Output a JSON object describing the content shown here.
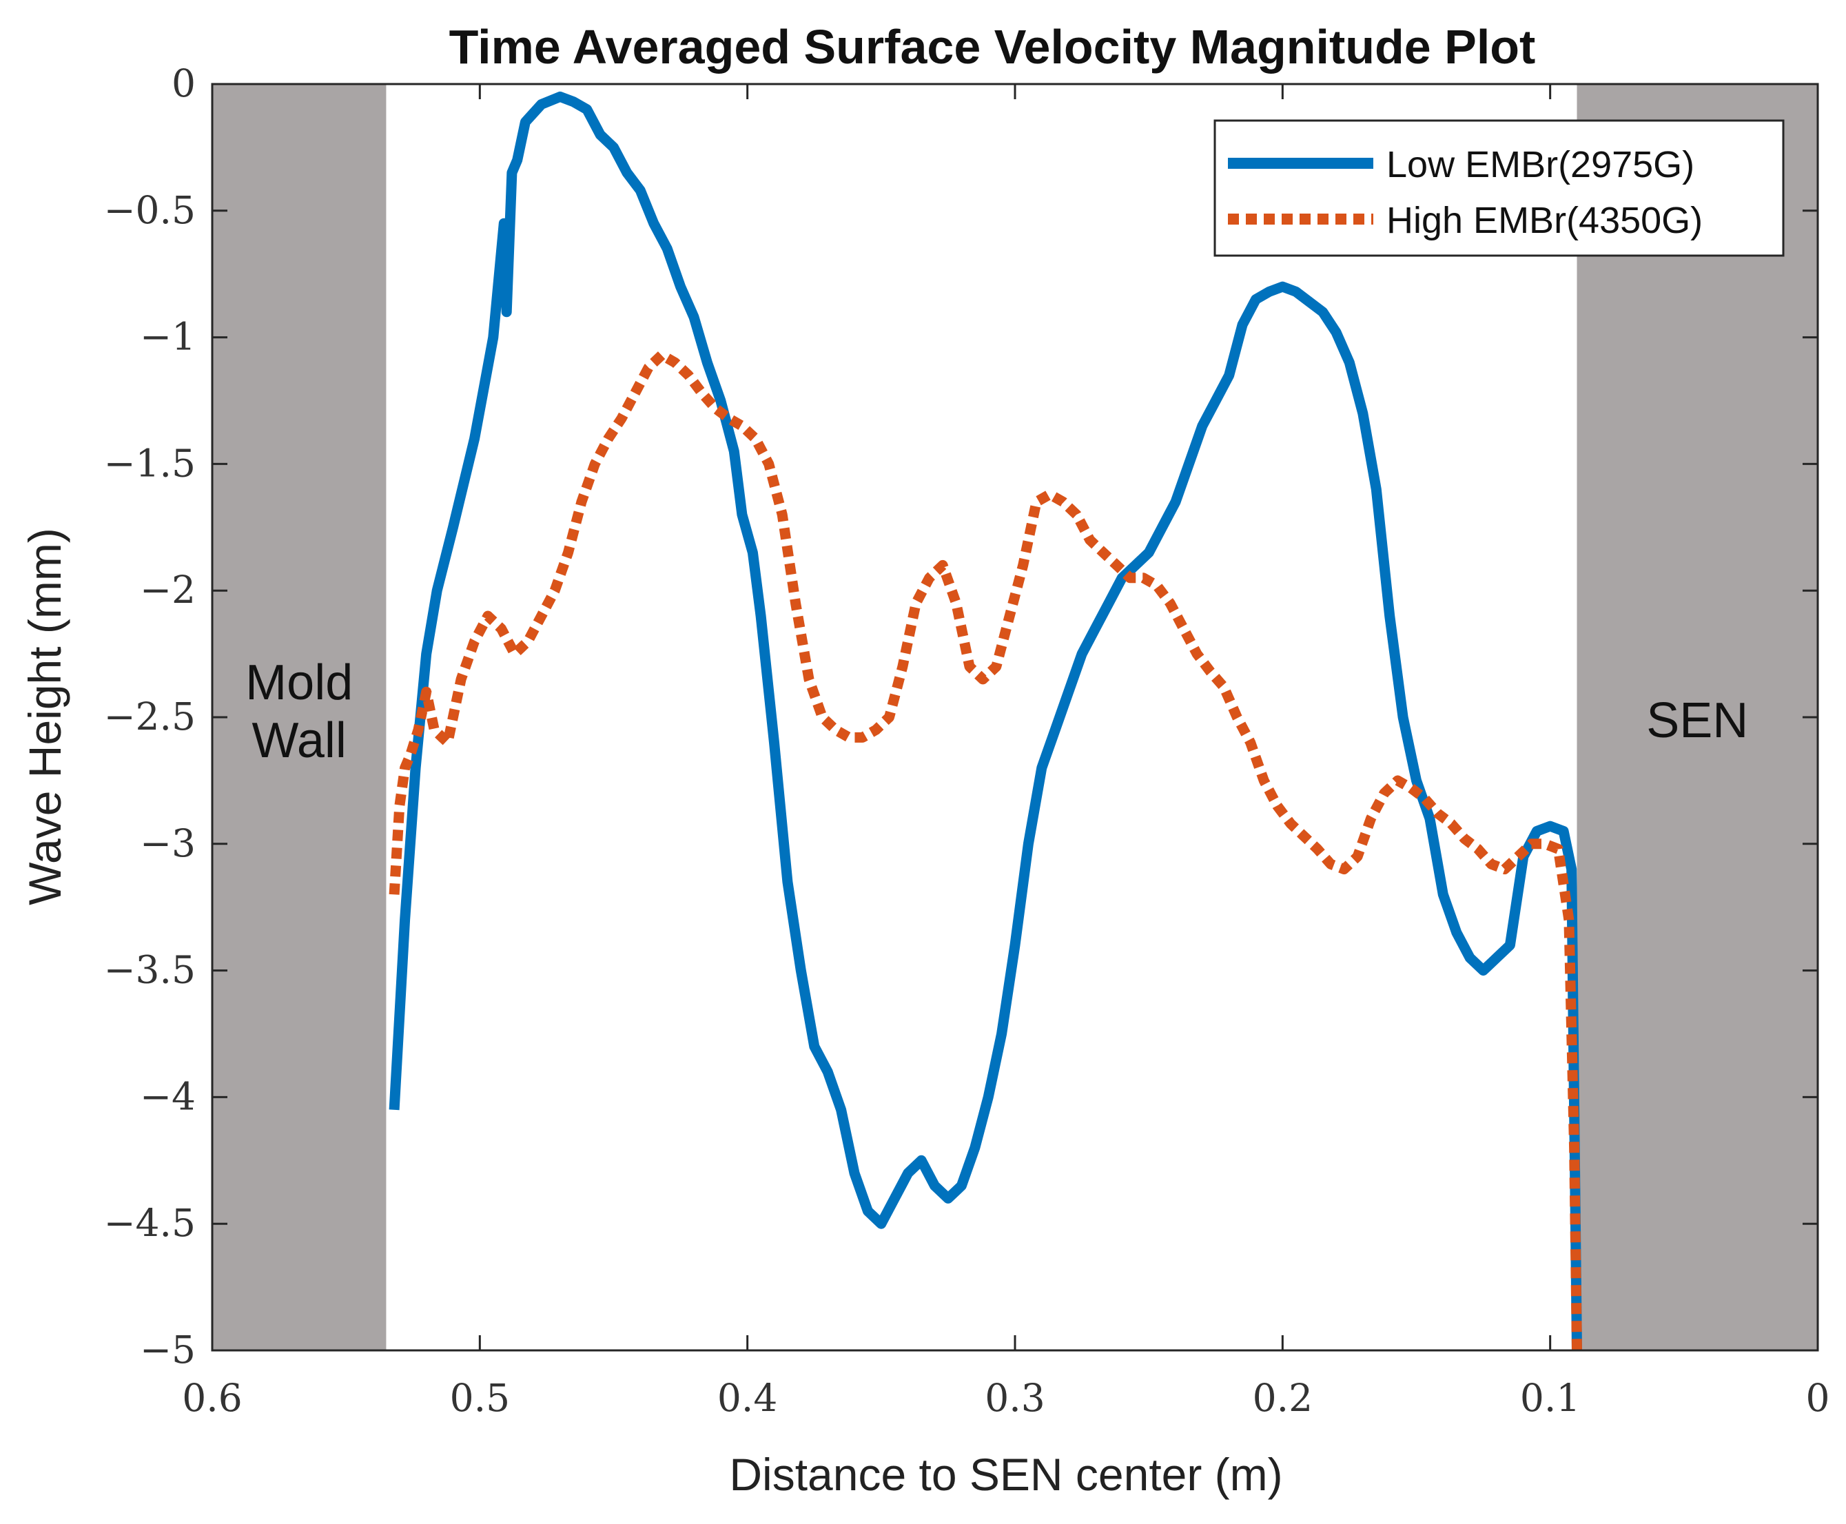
{
  "chart_data": {
    "type": "line",
    "title": "Time Averaged Surface Velocity Magnitude Plot",
    "xlabel": "Distance to SEN center (m)",
    "ylabel": "Wave Height (mm)",
    "xlim": [
      0.6,
      0
    ],
    "ylim": [
      -5,
      0
    ],
    "x_direction": "reversed",
    "xticks": [
      0.6,
      0.5,
      0.4,
      0.3,
      0.2,
      0.1,
      0
    ],
    "xtick_labels": [
      "0.6",
      "0.5",
      "0.4",
      "0.3",
      "0.2",
      "0.1",
      "0"
    ],
    "yticks": [
      0,
      -0.5,
      -1,
      -1.5,
      -2,
      -2.5,
      -3,
      -3.5,
      -4,
      -4.5,
      -5
    ],
    "ytick_labels": [
      "0",
      "−0.5",
      "−1",
      "−1.5",
      "−2",
      "−2.5",
      "−3",
      "−3.5",
      "−4",
      "−4.5",
      "−5"
    ],
    "grid": false,
    "legend_position": "top-right",
    "shaded_regions": [
      {
        "name": "mold-wall",
        "label_lines": [
          "Mold",
          "Wall"
        ],
        "x_start": 0.6,
        "x_end": 0.535,
        "color": "#a9a5a5"
      },
      {
        "name": "sen",
        "label_lines": [
          "SEN"
        ],
        "x_start": 0.09,
        "x_end": 0.0,
        "color": "#a9a5a5"
      }
    ],
    "series": [
      {
        "name": "Low EMBr(2975G)",
        "color": "#0072bd",
        "style": "solid",
        "x": [
          0.532,
          0.528,
          0.524,
          0.52,
          0.516,
          0.51,
          0.502,
          0.495,
          0.491,
          0.49,
          0.488,
          0.486,
          0.483,
          0.477,
          0.47,
          0.465,
          0.46,
          0.455,
          0.45,
          0.445,
          0.44,
          0.435,
          0.43,
          0.425,
          0.42,
          0.415,
          0.41,
          0.405,
          0.402,
          0.398,
          0.395,
          0.39,
          0.385,
          0.38,
          0.375,
          0.37,
          0.365,
          0.36,
          0.355,
          0.35,
          0.345,
          0.34,
          0.335,
          0.33,
          0.325,
          0.32,
          0.315,
          0.31,
          0.305,
          0.3,
          0.295,
          0.29,
          0.285,
          0.28,
          0.275,
          0.27,
          0.265,
          0.26,
          0.255,
          0.25,
          0.245,
          0.24,
          0.235,
          0.23,
          0.225,
          0.22,
          0.215,
          0.21,
          0.205,
          0.2,
          0.195,
          0.19,
          0.185,
          0.18,
          0.175,
          0.17,
          0.165,
          0.16,
          0.155,
          0.15,
          0.145,
          0.14,
          0.135,
          0.13,
          0.125,
          0.12,
          0.115,
          0.11,
          0.105,
          0.1,
          0.095,
          0.092,
          0.09
        ],
        "y": [
          -4.05,
          -3.3,
          -2.7,
          -2.25,
          -2.0,
          -1.75,
          -1.4,
          -1.0,
          -0.55,
          -0.9,
          -0.35,
          -0.3,
          -0.15,
          -0.08,
          -0.05,
          -0.07,
          -0.1,
          -0.2,
          -0.25,
          -0.35,
          -0.42,
          -0.55,
          -0.65,
          -0.8,
          -0.92,
          -1.1,
          -1.25,
          -1.45,
          -1.7,
          -1.85,
          -2.1,
          -2.6,
          -3.15,
          -3.5,
          -3.8,
          -3.9,
          -4.05,
          -4.3,
          -4.45,
          -4.5,
          -4.4,
          -4.3,
          -4.25,
          -4.35,
          -4.4,
          -4.35,
          -4.2,
          -4.0,
          -3.75,
          -3.4,
          -3.0,
          -2.7,
          -2.55,
          -2.4,
          -2.25,
          -2.15,
          -2.05,
          -1.95,
          -1.9,
          -1.85,
          -1.75,
          -1.65,
          -1.5,
          -1.35,
          -1.25,
          -1.15,
          -0.95,
          -0.85,
          -0.82,
          -0.8,
          -0.82,
          -0.86,
          -0.9,
          -0.98,
          -1.1,
          -1.3,
          -1.6,
          -2.1,
          -2.5,
          -2.75,
          -2.9,
          -3.2,
          -3.35,
          -3.45,
          -3.5,
          -3.45,
          -3.4,
          -3.05,
          -2.95,
          -2.93,
          -2.95,
          -3.1,
          -5.0
        ]
      },
      {
        "name": "High EMBr(4350G)",
        "color": "#d95319",
        "style": "dotted",
        "x": [
          0.532,
          0.53,
          0.528,
          0.526,
          0.523,
          0.52,
          0.517,
          0.512,
          0.507,
          0.502,
          0.497,
          0.492,
          0.487,
          0.482,
          0.477,
          0.472,
          0.467,
          0.462,
          0.457,
          0.452,
          0.447,
          0.442,
          0.437,
          0.432,
          0.427,
          0.422,
          0.417,
          0.412,
          0.407,
          0.402,
          0.397,
          0.392,
          0.387,
          0.382,
          0.377,
          0.372,
          0.367,
          0.362,
          0.357,
          0.352,
          0.347,
          0.342,
          0.337,
          0.332,
          0.327,
          0.322,
          0.317,
          0.312,
          0.307,
          0.302,
          0.297,
          0.292,
          0.287,
          0.282,
          0.277,
          0.272,
          0.267,
          0.262,
          0.257,
          0.252,
          0.247,
          0.242,
          0.237,
          0.232,
          0.227,
          0.222,
          0.217,
          0.212,
          0.207,
          0.202,
          0.197,
          0.192,
          0.187,
          0.182,
          0.177,
          0.172,
          0.167,
          0.162,
          0.157,
          0.152,
          0.147,
          0.142,
          0.137,
          0.132,
          0.127,
          0.122,
          0.117,
          0.112,
          0.107,
          0.102,
          0.097,
          0.093,
          0.091,
          0.09
        ],
        "y": [
          -3.2,
          -2.85,
          -2.7,
          -2.65,
          -2.55,
          -2.4,
          -2.55,
          -2.6,
          -2.35,
          -2.2,
          -2.1,
          -2.15,
          -2.25,
          -2.2,
          -2.1,
          -2.0,
          -1.85,
          -1.65,
          -1.5,
          -1.4,
          -1.32,
          -1.22,
          -1.12,
          -1.07,
          -1.1,
          -1.15,
          -1.22,
          -1.28,
          -1.32,
          -1.35,
          -1.4,
          -1.5,
          -1.7,
          -2.05,
          -2.35,
          -2.5,
          -2.55,
          -2.58,
          -2.58,
          -2.55,
          -2.5,
          -2.3,
          -2.05,
          -1.95,
          -1.9,
          -2.05,
          -2.3,
          -2.35,
          -2.3,
          -2.1,
          -1.9,
          -1.65,
          -1.62,
          -1.65,
          -1.7,
          -1.8,
          -1.85,
          -1.9,
          -1.95,
          -1.95,
          -1.98,
          -2.05,
          -2.15,
          -2.25,
          -2.32,
          -2.38,
          -2.5,
          -2.6,
          -2.75,
          -2.85,
          -2.92,
          -2.97,
          -3.02,
          -3.08,
          -3.1,
          -3.05,
          -2.9,
          -2.8,
          -2.75,
          -2.78,
          -2.82,
          -2.88,
          -2.92,
          -2.98,
          -3.02,
          -3.08,
          -3.1,
          -3.05,
          -3.0,
          -3.0,
          -3.02,
          -3.3,
          -4.2,
          -5.0
        ]
      }
    ]
  }
}
